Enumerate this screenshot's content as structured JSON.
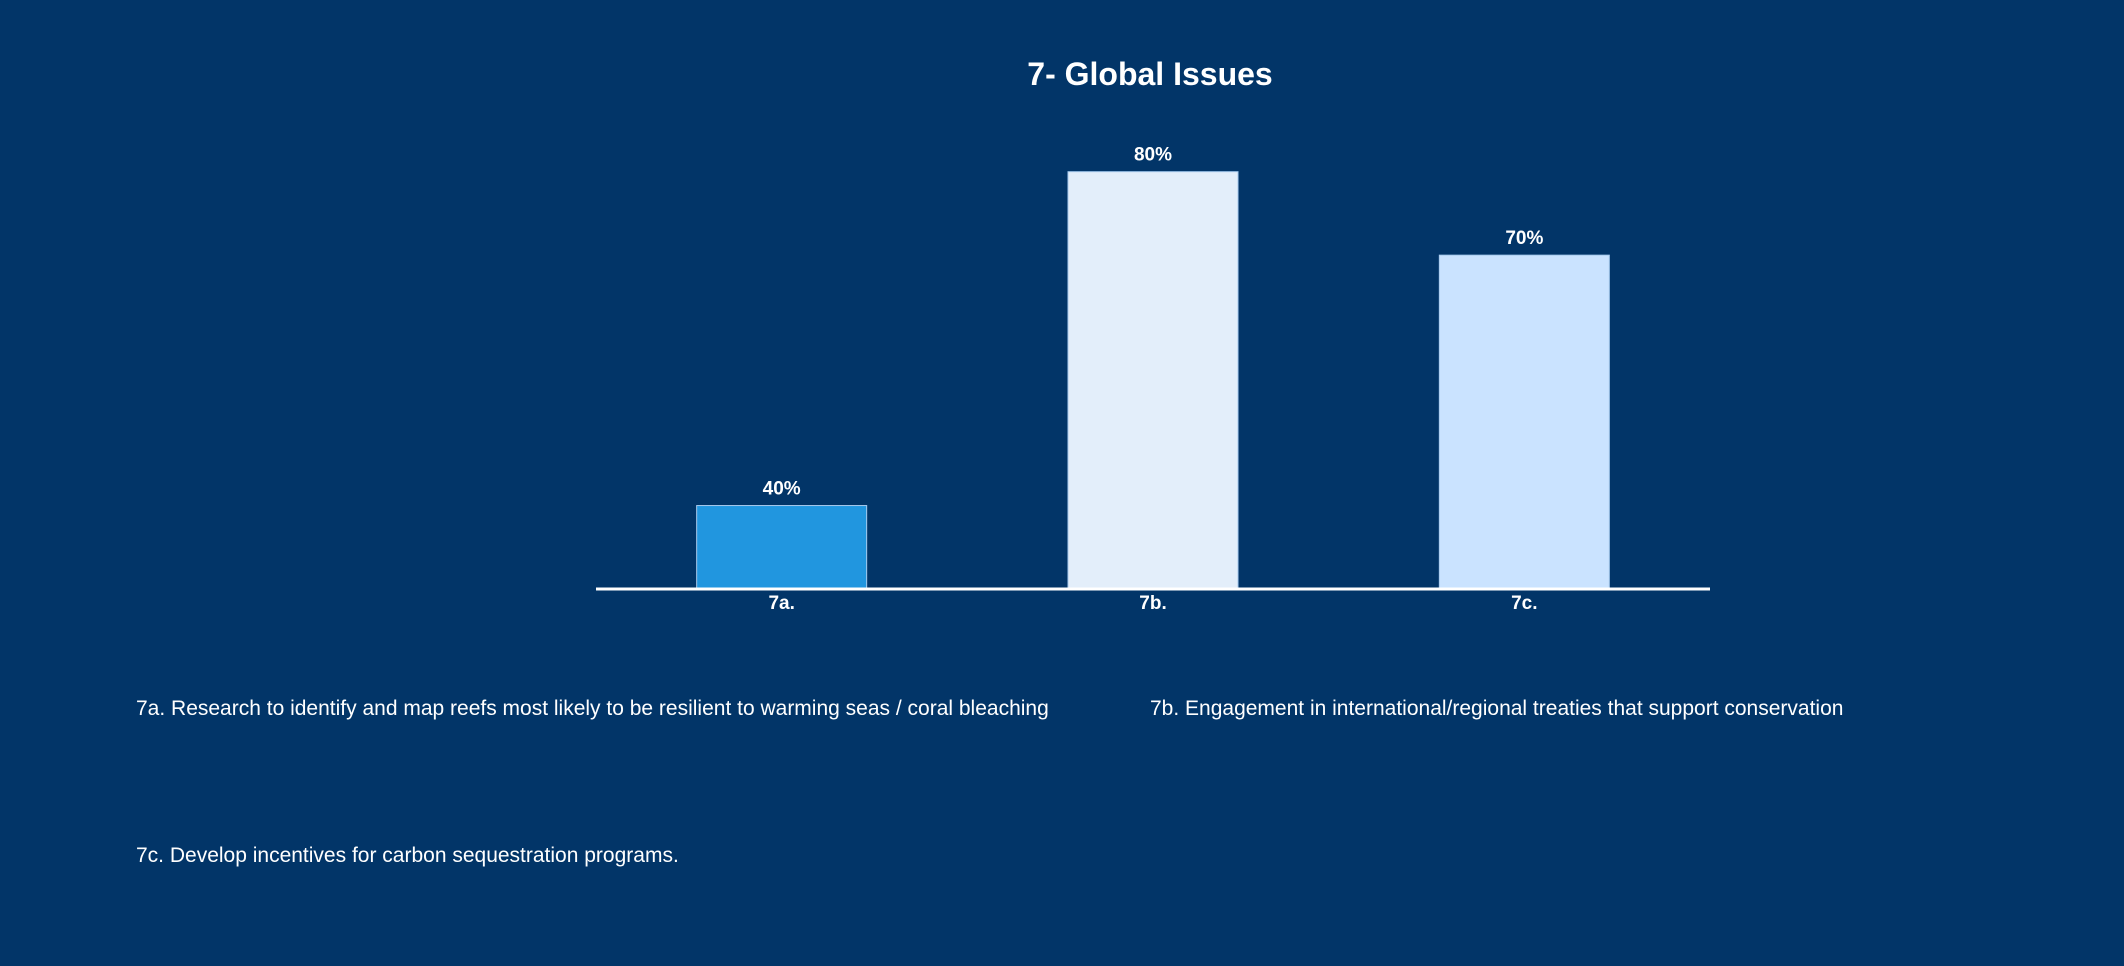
{
  "chart_data": {
    "type": "bar",
    "title": "7- Global Issues",
    "categories": [
      "7a.",
      "7b.",
      "7c."
    ],
    "values": [
      40,
      80,
      70
    ],
    "value_labels": [
      "40%",
      "80%",
      "70%"
    ],
    "bar_colors": [
      "#2196DF",
      "#E3EEFA",
      "#CAE3FF"
    ],
    "ylim": [
      30,
      82
    ],
    "grid": false,
    "legend": [
      "7a. Research to identify and map reefs most likely to be resilient to warming seas / coral bleaching",
      "7b. Engagement in international/regional treaties that support conservation",
      "7c. Develop incentives for carbon sequestration programs."
    ]
  },
  "colors": {
    "background": "#023568",
    "text": "#FFFFFF",
    "axis": "#FFFFFF"
  }
}
